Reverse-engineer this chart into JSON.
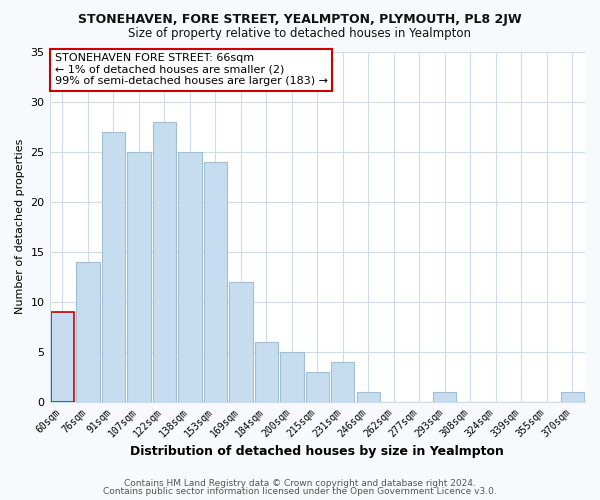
{
  "title": "STONEHAVEN, FORE STREET, YEALMPTON, PLYMOUTH, PL8 2JW",
  "subtitle": "Size of property relative to detached houses in Yealmpton",
  "xlabel": "Distribution of detached houses by size in Yealmpton",
  "ylabel": "Number of detached properties",
  "bar_labels": [
    "60sqm",
    "76sqm",
    "91sqm",
    "107sqm",
    "122sqm",
    "138sqm",
    "153sqm",
    "169sqm",
    "184sqm",
    "200sqm",
    "215sqm",
    "231sqm",
    "246sqm",
    "262sqm",
    "277sqm",
    "293sqm",
    "308sqm",
    "324sqm",
    "339sqm",
    "355sqm",
    "370sqm"
  ],
  "bar_values": [
    9,
    14,
    27,
    25,
    28,
    25,
    24,
    12,
    6,
    5,
    3,
    4,
    1,
    0,
    0,
    1,
    0,
    0,
    0,
    0,
    1
  ],
  "bar_color": "#c5ddef",
  "highlight_bar_index": 0,
  "highlight_edge_color": "#cc0000",
  "normal_edge_color": "#a0bfd4",
  "annotation_line1": "STONEHAVEN FORE STREET: 66sqm",
  "annotation_line2": "← 1% of detached houses are smaller (2)",
  "annotation_line3": "99% of semi-detached houses are larger (183) →",
  "annotation_box_edge": "#cc0000",
  "ylim": [
    0,
    35
  ],
  "yticks": [
    0,
    5,
    10,
    15,
    20,
    25,
    30,
    35
  ],
  "footer_line1": "Contains HM Land Registry data © Crown copyright and database right 2024.",
  "footer_line2": "Contains public sector information licensed under the Open Government Licence v3.0.",
  "background_color": "#f7f9fc",
  "plot_bg_color": "#ffffff",
  "grid_color": "#ccdcec"
}
